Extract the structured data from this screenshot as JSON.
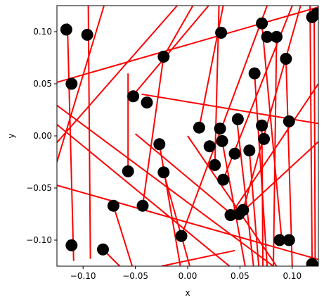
{
  "chart_data": {
    "type": "scatter",
    "title": "",
    "xlabel": "x",
    "ylabel": "y",
    "xlim": [
      -0.125,
      0.125
    ],
    "ylim": [
      -0.125,
      0.125
    ],
    "grid": false,
    "x_ticks": [
      -0.1,
      -0.05,
      0.0,
      0.05,
      0.1
    ],
    "x_tick_labels": [
      "−0.10",
      "−0.05",
      "0.00",
      "0.05",
      "0.10"
    ],
    "y_ticks": [
      -0.1,
      -0.05,
      0.0,
      0.05,
      0.1
    ],
    "y_tick_labels": [
      "−0.10",
      "−0.05",
      "0.00",
      "0.05",
      "0.10"
    ],
    "colors": {
      "points": "#000000",
      "segments": "#ff0000"
    },
    "points": [
      {
        "x": -0.116,
        "y": 0.102
      },
      {
        "x": -0.096,
        "y": 0.097
      },
      {
        "x": -0.111,
        "y": 0.05
      },
      {
        "x": -0.052,
        "y": 0.038
      },
      {
        "x": -0.039,
        "y": 0.032
      },
      {
        "x": -0.023,
        "y": 0.076
      },
      {
        "x": -0.057,
        "y": -0.034
      },
      {
        "x": -0.027,
        "y": -0.008
      },
      {
        "x": -0.023,
        "y": -0.035
      },
      {
        "x": -0.071,
        "y": -0.067
      },
      {
        "x": -0.043,
        "y": -0.067
      },
      {
        "x": -0.111,
        "y": -0.105
      },
      {
        "x": -0.081,
        "y": -0.109
      },
      {
        "x": -0.006,
        "y": -0.096
      },
      {
        "x": 0.011,
        "y": 0.008
      },
      {
        "x": 0.032,
        "y": 0.099
      },
      {
        "x": 0.031,
        "y": 0.007
      },
      {
        "x": 0.033,
        "y": -0.005
      },
      {
        "x": 0.021,
        "y": -0.01
      },
      {
        "x": 0.026,
        "y": -0.028
      },
      {
        "x": 0.034,
        "y": -0.042
      },
      {
        "x": 0.045,
        "y": -0.017
      },
      {
        "x": 0.048,
        "y": 0.016
      },
      {
        "x": 0.059,
        "y": -0.014
      },
      {
        "x": 0.064,
        "y": 0.06
      },
      {
        "x": 0.071,
        "y": 0.108
      },
      {
        "x": 0.076,
        "y": 0.095
      },
      {
        "x": 0.085,
        "y": 0.095
      },
      {
        "x": 0.094,
        "y": 0.074
      },
      {
        "x": 0.071,
        "y": 0.01
      },
      {
        "x": 0.073,
        "y": -0.003
      },
      {
        "x": 0.097,
        "y": 0.014
      },
      {
        "x": 0.041,
        "y": -0.076
      },
      {
        "x": 0.049,
        "y": -0.075
      },
      {
        "x": 0.053,
        "y": -0.071
      },
      {
        "x": 0.088,
        "y": -0.1
      },
      {
        "x": 0.097,
        "y": -0.1
      },
      {
        "x": 0.119,
        "y": 0.114
      },
      {
        "x": 0.123,
        "y": 0.117
      },
      {
        "x": 0.119,
        "y": -0.123
      }
    ],
    "segments": [
      [
        -0.13,
        0.05,
        0.13,
        0.125
      ],
      [
        -0.13,
        0.033,
        0.082,
        -0.125
      ],
      [
        -0.13,
        -0.012,
        -0.01,
        0.125
      ],
      [
        -0.13,
        0.015,
        0.04,
        -0.125
      ],
      [
        -0.13,
        -0.046,
        0.13,
        -0.12
      ],
      [
        -0.125,
        -0.025,
        -0.08,
        0.125
      ],
      [
        -0.115,
        0.108,
        -0.109,
        -0.12
      ],
      [
        -0.093,
        -0.118,
        -0.095,
        0.125
      ],
      [
        -0.081,
        -0.109,
        -0.065,
        -0.125
      ],
      [
        -0.071,
        -0.067,
        -0.053,
        -0.125
      ],
      [
        -0.053,
        0.038,
        0.02,
        0.125
      ],
      [
        -0.044,
        0.04,
        0.13,
        0.011
      ],
      [
        -0.057,
        -0.034,
        -0.057,
        0.06
      ],
      [
        -0.043,
        -0.067,
        -0.023,
        0.076
      ],
      [
        -0.023,
        0.076,
        0.005,
        0.125
      ],
      [
        -0.023,
        -0.035,
        0.002,
        -0.125
      ],
      [
        -0.027,
        -0.008,
        -0.007,
        -0.125
      ],
      [
        -0.05,
        0.002,
        0.043,
        -0.076
      ],
      [
        0.0,
        0.0,
        0.085,
        -0.125
      ],
      [
        -0.006,
        -0.096,
        0.076,
        0.125
      ],
      [
        0.011,
        0.008,
        0.034,
        0.125
      ],
      [
        0.026,
        -0.028,
        0.03,
        0.125
      ],
      [
        0.033,
        -0.005,
        0.055,
        -0.125
      ],
      [
        0.034,
        -0.042,
        0.1,
        0.125
      ],
      [
        0.041,
        -0.076,
        0.125,
        0.05
      ],
      [
        0.053,
        -0.071,
        0.108,
        0.125
      ],
      [
        0.047,
        0.016,
        0.063,
        -0.125
      ],
      [
        0.059,
        -0.014,
        0.068,
        -0.125
      ],
      [
        0.071,
        0.01,
        0.072,
        -0.125
      ],
      [
        0.064,
        0.06,
        0.076,
        -0.125
      ],
      [
        0.071,
        0.108,
        0.09,
        -0.1
      ],
      [
        0.085,
        0.095,
        0.082,
        -0.125
      ],
      [
        0.094,
        0.074,
        0.1,
        -0.125
      ],
      [
        0.117,
        0.125,
        0.119,
        -0.123
      ],
      [
        0.121,
        0.118,
        0.122,
        -0.125
      ],
      [
        0.05,
        -0.075,
        0.13,
        -0.001
      ],
      [
        -0.025,
        -0.125,
        0.045,
        -0.11
      ]
    ]
  }
}
